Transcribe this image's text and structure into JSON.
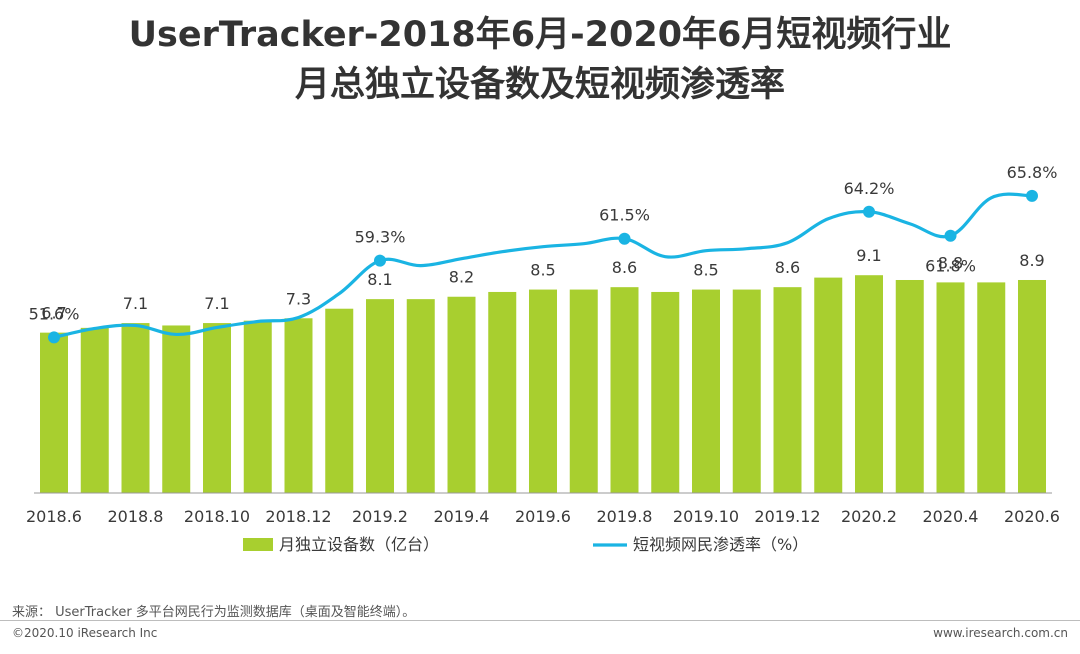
{
  "chart_data": {
    "type": "bar+line",
    "title": [
      "UserTracker-2018年6月-2020年6月短视频行业",
      "月总独立设备数及短视频渗透率"
    ],
    "categories": [
      "2018.6",
      "2018.7",
      "2018.8",
      "2018.9",
      "2018.10",
      "2018.11",
      "2018.12",
      "2019.1",
      "2019.2",
      "2019.3",
      "2019.4",
      "2019.5",
      "2019.6",
      "2019.7",
      "2019.8",
      "2019.9",
      "2019.10",
      "2019.11",
      "2019.12",
      "2020.1",
      "2020.2",
      "2020.3",
      "2020.4",
      "2020.5",
      "2020.6"
    ],
    "x_tick_labels": [
      "2018.6",
      "2018.8",
      "2018.10",
      "2018.12",
      "2019.2",
      "2019.4",
      "2019.6",
      "2019.8",
      "2019.10",
      "2019.12",
      "2020.2",
      "2020.4",
      "2020.6"
    ],
    "series": [
      {
        "name": "月独立设备数（亿台）",
        "type": "bar",
        "color": "#a8cf2f",
        "values": [
          6.7,
          6.9,
          7.1,
          7.0,
          7.1,
          7.2,
          7.3,
          7.7,
          8.1,
          8.1,
          8.2,
          8.4,
          8.5,
          8.5,
          8.6,
          8.4,
          8.5,
          8.5,
          8.6,
          9.0,
          9.1,
          8.9,
          8.8,
          8.8,
          8.9
        ]
      },
      {
        "name": "短视频网民渗透率（%）",
        "type": "line",
        "color": "#1ab4e3",
        "values": [
          51.6,
          52.5,
          52.8,
          51.9,
          52.6,
          53.2,
          53.6,
          56.0,
          59.3,
          58.8,
          59.5,
          60.2,
          60.7,
          61.0,
          61.5,
          59.7,
          60.3,
          60.5,
          61.1,
          63.5,
          64.2,
          63.0,
          61.8,
          65.6,
          65.8
        ]
      }
    ],
    "bar_labels": [
      {
        "index": 0,
        "text": "6.7"
      },
      {
        "index": 2,
        "text": "7.1"
      },
      {
        "index": 4,
        "text": "7.1"
      },
      {
        "index": 6,
        "text": "7.3"
      },
      {
        "index": 8,
        "text": "8.1"
      },
      {
        "index": 10,
        "text": "8.2"
      },
      {
        "index": 12,
        "text": "8.5"
      },
      {
        "index": 14,
        "text": "8.6"
      },
      {
        "index": 16,
        "text": "8.5"
      },
      {
        "index": 18,
        "text": "8.6"
      },
      {
        "index": 20,
        "text": "9.1"
      },
      {
        "index": 22,
        "text": "8.8"
      },
      {
        "index": 24,
        "text": "8.9"
      }
    ],
    "line_markers": [
      {
        "index": 0,
        "text": "51.6%",
        "label_pos": "above"
      },
      {
        "index": 8,
        "text": "59.3%",
        "label_pos": "above"
      },
      {
        "index": 14,
        "text": "61.5%",
        "label_pos": "above"
      },
      {
        "index": 20,
        "text": "64.2%",
        "label_pos": "above"
      },
      {
        "index": 22,
        "text": "61.8%",
        "label_pos": "below"
      },
      {
        "index": 24,
        "text": "65.8%",
        "label_pos": "above"
      }
    ],
    "bar_ylim": [
      0,
      15
    ],
    "line_ylim": [
      36,
      72
    ],
    "grid": false,
    "legend_position": "bottom"
  },
  "footer": {
    "source": "来源： UserTracker 多平台网民行为监测数据库（桌面及智能终端）。",
    "copyright": "©2020.10 iResearch Inc",
    "website": "www.iresearch.com.cn"
  }
}
